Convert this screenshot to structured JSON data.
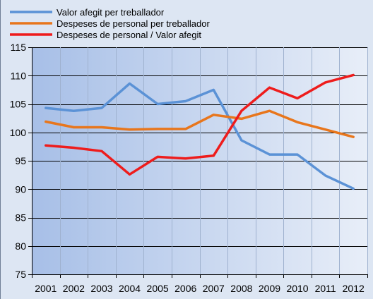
{
  "chart_data": {
    "type": "line",
    "title": "",
    "xlabel": "",
    "ylabel": "",
    "categories": [
      "2001",
      "2002",
      "2003",
      "2004",
      "2005",
      "2006",
      "2007",
      "2008",
      "2009",
      "2010",
      "2011",
      "2012"
    ],
    "ylim": [
      75,
      115
    ],
    "yticks": [
      75,
      80,
      85,
      90,
      95,
      100,
      105,
      110,
      115
    ],
    "grid": true,
    "legend_position": "top",
    "series": [
      {
        "name": "Valor afegit per treballador",
        "color": "#5b92d6",
        "values": [
          104.3,
          103.8,
          104.3,
          108.6,
          105.0,
          105.5,
          107.5,
          98.6,
          96.1,
          96.1,
          92.4,
          90.1
        ]
      },
      {
        "name": "Despeses de personal per treballador",
        "color": "#e8761c",
        "values": [
          101.9,
          100.9,
          100.9,
          100.5,
          100.6,
          100.6,
          103.1,
          102.4,
          103.8,
          101.8,
          100.5,
          99.2
        ]
      },
      {
        "name": "Despeses de personal / Valor afegit",
        "color": "#ee1c1c",
        "values": [
          97.7,
          97.3,
          96.7,
          92.6,
          95.7,
          95.4,
          95.9,
          103.8,
          107.9,
          106.0,
          108.8,
          110.1
        ]
      }
    ]
  }
}
